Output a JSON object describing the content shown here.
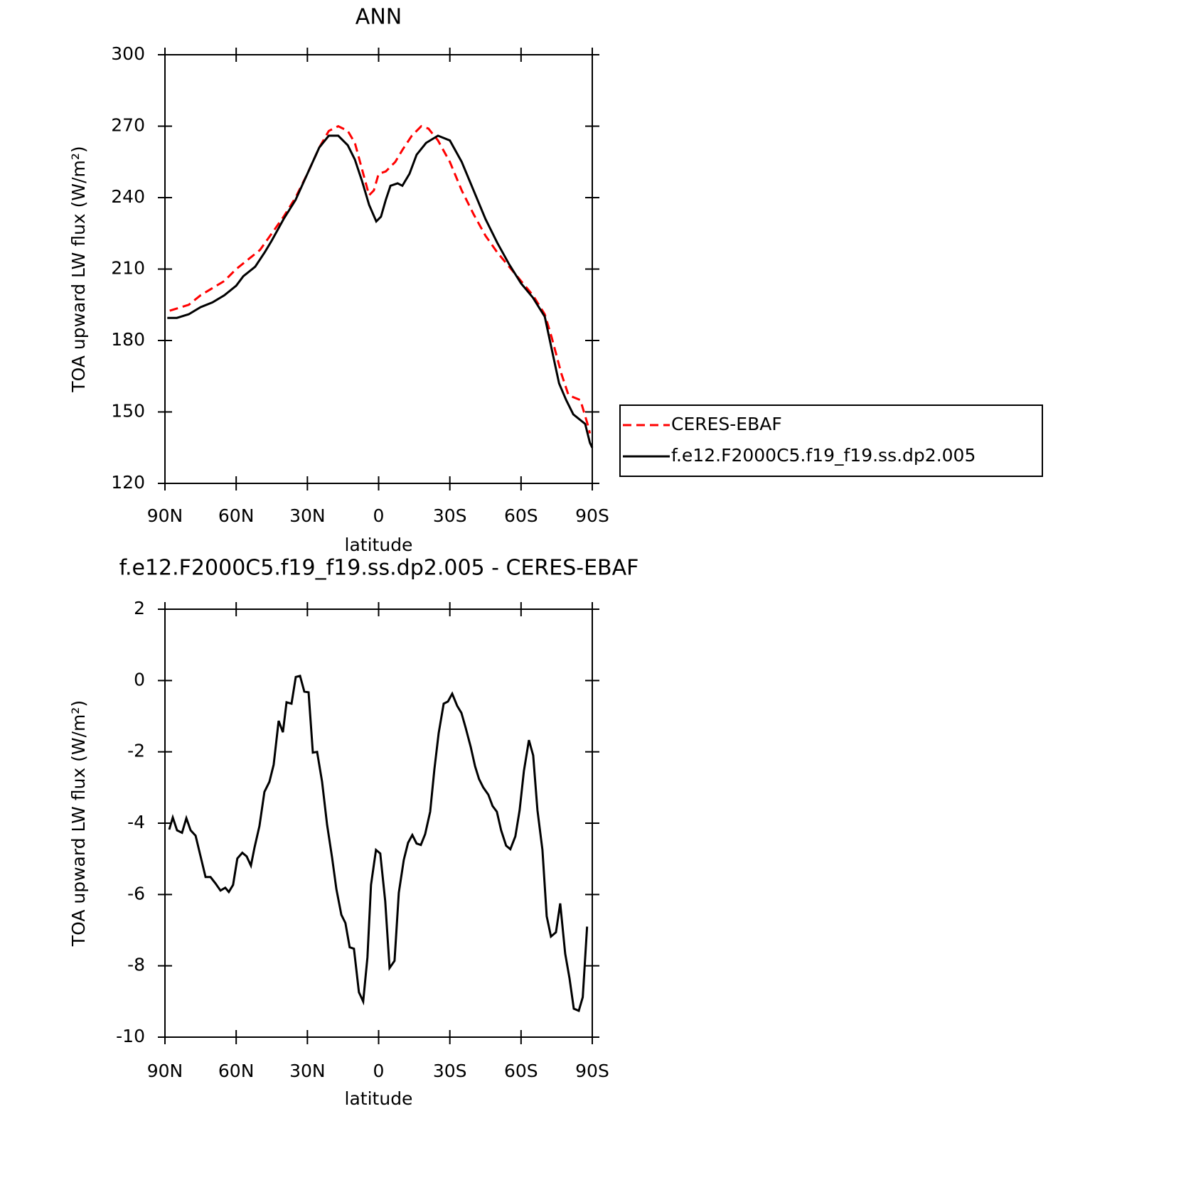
{
  "chart_data": [
    {
      "type": "line",
      "title": "ANN",
      "x_label": "latitude",
      "y_label": "TOA upward LW flux (W/m²)",
      "xlim": [
        90,
        -90
      ],
      "xticks": [
        {
          "value": 90,
          "label": "90N"
        },
        {
          "value": 60,
          "label": "60N"
        },
        {
          "value": 30,
          "label": "30N"
        },
        0,
        {
          "value": -30,
          "label": "30S"
        },
        {
          "value": -60,
          "label": "60S"
        },
        {
          "value": -90,
          "label": "90S"
        }
      ],
      "ylim": [
        120,
        300
      ],
      "yticks": [
        120,
        150,
        180,
        210,
        240,
        270,
        300
      ],
      "legend": "right",
      "series": [
        {
          "name": "CERES-EBAF",
          "color": "#ff0000",
          "linestyle": "dashed",
          "x": [
            88,
            80,
            75,
            70,
            65,
            60,
            55,
            50,
            45,
            40,
            35,
            30,
            25,
            21,
            17,
            13,
            10,
            7,
            4,
            2,
            0,
            -3,
            -7,
            -10,
            -14,
            -18,
            -21,
            -25,
            -30,
            -35,
            -40,
            -45,
            -50,
            -55,
            -60,
            -65,
            -70,
            -73,
            -77,
            -80,
            -85,
            -88,
            -89
          ],
          "values": [
            192.5,
            195,
            199,
            202,
            205,
            210,
            214,
            218,
            225,
            232,
            240,
            250,
            261,
            268,
            270,
            268,
            263,
            252,
            241,
            243,
            250,
            251,
            255,
            260,
            266,
            270,
            269,
            264,
            255,
            243,
            233,
            224,
            217,
            211,
            205,
            199,
            191,
            181,
            166,
            157,
            155,
            145,
            141
          ]
        },
        {
          "name": "f.e12.F2000C5.f19_f19.ss.dp2.005",
          "color": "#000000",
          "linestyle": "solid",
          "x": [
            89,
            85,
            80,
            75,
            70,
            65,
            60,
            57,
            52,
            48,
            45,
            40,
            35,
            30,
            25,
            21,
            17,
            13,
            10,
            7,
            4,
            1,
            -1,
            -3,
            -5,
            -8,
            -10,
            -13,
            -16,
            -20,
            -25,
            -30,
            -35,
            -40,
            -45,
            -50,
            -55,
            -60,
            -65,
            -70,
            -73,
            -76,
            -79,
            -82,
            -87,
            -89,
            -90
          ],
          "values": [
            189.5,
            189.5,
            191,
            194,
            196,
            199,
            203,
            207,
            211,
            217,
            222,
            231,
            239,
            250,
            261,
            266,
            266,
            262,
            256,
            247,
            237,
            230,
            232,
            239,
            245,
            246,
            245,
            250,
            258,
            263,
            266,
            264,
            255,
            243,
            231,
            221,
            212,
            204,
            198,
            190,
            176,
            162,
            155,
            149,
            145,
            137,
            135
          ]
        }
      ]
    },
    {
      "type": "line",
      "title": "f.e12.F2000C5.f19_f19.ss.dp2.005 - CERES-EBAF",
      "x_label": "latitude",
      "y_label": "TOA upward LW flux (W/m²)",
      "xlim": [
        90,
        -90
      ],
      "xticks": [
        {
          "value": 90,
          "label": "90N"
        },
        {
          "value": 60,
          "label": "60N"
        },
        {
          "value": 30,
          "label": "30N"
        },
        0,
        {
          "value": -30,
          "label": "30S"
        },
        {
          "value": -60,
          "label": "60S"
        },
        {
          "value": -90,
          "label": "90S"
        }
      ],
      "ylim": [
        -10,
        2
      ],
      "yticks": [
        -10,
        -8,
        -6,
        -4,
        -2,
        0,
        2
      ],
      "color": "#000000",
      "x": [
        88.2,
        86.7,
        84.9,
        82.8,
        81,
        79.2,
        77.1,
        75,
        72.9,
        70.8,
        68.7,
        66.6,
        64.6,
        63.1,
        61.3,
        59.5,
        57.4,
        55.6,
        53.8,
        52.3,
        50.2,
        48.1,
        46,
        44.2,
        42.1,
        40.3,
        38.8,
        36.7,
        34.9,
        33.1,
        31.3,
        29.5,
        27.7,
        25.9,
        23.8,
        21.7,
        19.6,
        17.8,
        15.7,
        14,
        12.2,
        10.4,
        8.3,
        6.5,
        4.7,
        3.2,
        1.1,
        -0.7,
        -2.8,
        -4.6,
        -6.7,
        -8.5,
        -10.6,
        -12.4,
        -14.2,
        -16,
        -17.8,
        -19.6,
        -21.7,
        -23.5,
        -25.3,
        -27.4,
        -29.2,
        -31,
        -33.1,
        -34.9,
        -36.7,
        -38.8,
        -40.6,
        -42.3,
        -44.1,
        -46.2,
        -48,
        -49.8,
        -51.6,
        -53.7,
        -55.5,
        -57.6,
        -59.4,
        -61.2,
        -63.3,
        -65.1,
        -66.9,
        -69,
        -70.8,
        -72.6,
        -74.7,
        -76.5,
        -78.6,
        -80.4,
        -82.2,
        -84.3,
        -86,
        -87.8
      ],
      "values": [
        -4.18,
        -3.84,
        -4.2,
        -4.27,
        -3.86,
        -4.2,
        -4.35,
        -4.93,
        -5.51,
        -5.51,
        -5.69,
        -5.89,
        -5.81,
        -5.93,
        -5.73,
        -4.99,
        -4.83,
        -4.93,
        -5.19,
        -4.69,
        -4.08,
        -3.12,
        -2.84,
        -2.36,
        -1.13,
        -1.45,
        -0.61,
        -0.65,
        0.1,
        0.13,
        -0.31,
        -0.33,
        -2.02,
        -2.0,
        -2.84,
        -4.04,
        -4.97,
        -5.85,
        -6.57,
        -6.8,
        -7.48,
        -7.52,
        -8.74,
        -9.0,
        -7.76,
        -5.73,
        -4.75,
        -4.85,
        -6.19,
        -8.06,
        -7.86,
        -5.95,
        -5.03,
        -4.55,
        -4.33,
        -4.57,
        -4.61,
        -4.31,
        -3.68,
        -2.48,
        -1.47,
        -0.65,
        -0.59,
        -0.37,
        -0.71,
        -0.91,
        -1.33,
        -1.86,
        -2.4,
        -2.76,
        -3.0,
        -3.2,
        -3.52,
        -3.68,
        -4.2,
        -4.63,
        -4.73,
        -4.37,
        -3.64,
        -2.54,
        -1.67,
        -2.1,
        -3.64,
        -4.75,
        -6.61,
        -7.18,
        -7.06,
        -6.25,
        -7.66,
        -8.34,
        -9.2,
        -9.26,
        -8.88,
        -6.9
      ]
    }
  ]
}
